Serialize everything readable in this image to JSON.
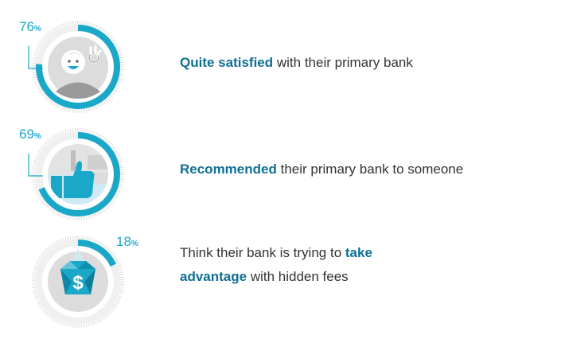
{
  "chart_data": {
    "type": "radial-progress",
    "items": [
      {
        "value": 76,
        "value_label": "76",
        "unit": "%",
        "icon": "happy-face-ok-icon",
        "highlight": "Quite satisfied",
        "text_after": " with their primary bank"
      },
      {
        "value": 69,
        "value_label": "69",
        "unit": "%",
        "icon": "thumbs-up-icon",
        "highlight": "Recommended",
        "text_after": " their primary bank to someone"
      },
      {
        "value": 18,
        "value_label": "18",
        "unit": "%",
        "icon": "dollar-gem-icon",
        "text_before": "Think their bank is trying to ",
        "highlight": "take advantage",
        "highlight_line1": "take",
        "highlight_line2": "advantage",
        "text_after": " with hidden fees"
      }
    ]
  },
  "colors": {
    "accent": "#1aa8c9",
    "highlight_text": "#0f6f93",
    "body_text": "#333333",
    "track": "#e6e6e6",
    "icon_gray": "#c9c9c9",
    "icon_dark": "#8f8f8f"
  }
}
